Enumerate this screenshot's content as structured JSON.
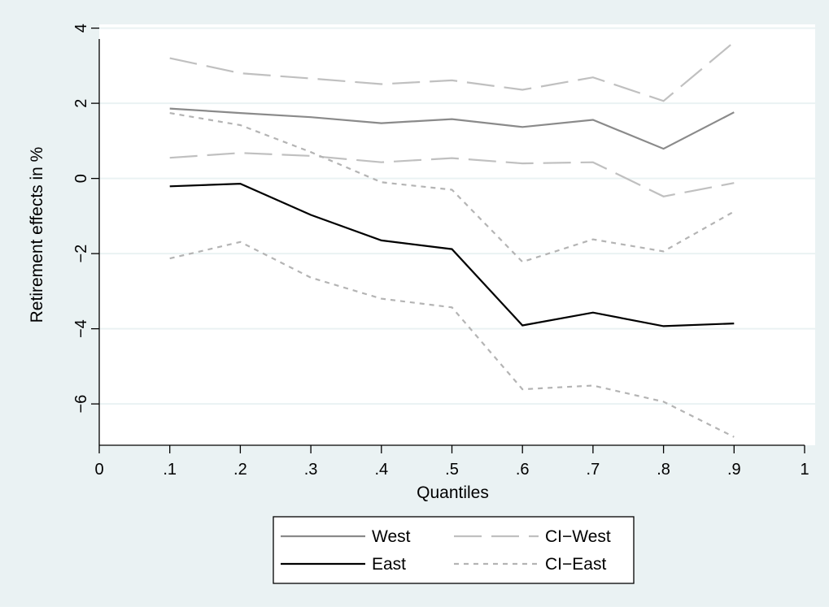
{
  "chart_data": {
    "type": "line",
    "xlabel": "Quantiles",
    "ylabel": "Retirement effects in %",
    "xlim": [
      0,
      1
    ],
    "ylim": [
      -7.1,
      4.1
    ],
    "x_ticks": [
      0,
      0.1,
      0.2,
      0.3,
      0.4,
      0.5,
      0.6,
      0.7,
      0.8,
      0.9,
      1
    ],
    "x_tick_labels": [
      "0",
      ".1",
      ".2",
      ".3",
      ".4",
      ".5",
      ".6",
      ".7",
      ".8",
      ".9",
      "1"
    ],
    "y_ticks": [
      4,
      2,
      0,
      -2,
      -4,
      -6
    ],
    "y_tick_labels": [
      "4",
      "2",
      "0",
      "−2",
      "−4",
      "−6"
    ],
    "grid": true,
    "legend_position": "bottom",
    "series": [
      {
        "name": "West",
        "style": "solid",
        "color": "#8a8a8a",
        "x": [
          0.1,
          0.2,
          0.3,
          0.4,
          0.5,
          0.6,
          0.7,
          0.8,
          0.9
        ],
        "values": [
          1.86,
          1.74,
          1.63,
          1.47,
          1.58,
          1.37,
          1.56,
          0.79,
          1.76
        ]
      },
      {
        "name": "CI−West",
        "style": "longdash",
        "color": "#c0c0c0",
        "x": [
          0.1,
          0.2,
          0.3,
          0.4,
          0.5,
          0.6,
          0.7,
          0.8,
          0.9
        ],
        "values": [
          3.2,
          2.8,
          2.66,
          2.51,
          2.61,
          2.36,
          2.69,
          2.06,
          3.63
        ]
      },
      {
        "name": "CI−West",
        "style": "longdash",
        "color": "#c0c0c0",
        "legend": false,
        "x": [
          0.1,
          0.2,
          0.3,
          0.4,
          0.5,
          0.6,
          0.7,
          0.8,
          0.9
        ],
        "values": [
          0.55,
          0.68,
          0.6,
          0.43,
          0.54,
          0.4,
          0.43,
          -0.48,
          -0.12
        ]
      },
      {
        "name": "East",
        "style": "solid",
        "color": "#000000",
        "x": [
          0.1,
          0.2,
          0.3,
          0.4,
          0.5,
          0.6,
          0.7,
          0.8,
          0.9
        ],
        "values": [
          -0.21,
          -0.14,
          -0.97,
          -1.65,
          -1.88,
          -3.91,
          -3.57,
          -3.93,
          -3.86
        ]
      },
      {
        "name": "CI−East",
        "style": "shortdash",
        "color": "#b4b4b4",
        "x": [
          0.1,
          0.2,
          0.3,
          0.4,
          0.5,
          0.6,
          0.7,
          0.8,
          0.9
        ],
        "values": [
          1.74,
          1.42,
          0.7,
          -0.1,
          -0.3,
          -2.22,
          -1.62,
          -1.94,
          -0.88
        ]
      },
      {
        "name": "CI−East",
        "style": "shortdash",
        "color": "#b4b4b4",
        "legend": false,
        "x": [
          0.1,
          0.2,
          0.3,
          0.4,
          0.5,
          0.6,
          0.7,
          0.8,
          0.9
        ],
        "values": [
          -2.13,
          -1.69,
          -2.64,
          -3.2,
          -3.43,
          -5.61,
          -5.51,
          -5.94,
          -6.88
        ]
      }
    ],
    "legend": [
      {
        "label": "West",
        "style": "solid",
        "color": "#8a8a8a"
      },
      {
        "label": "CI−West",
        "style": "longdash",
        "color": "#c0c0c0"
      },
      {
        "label": "East",
        "style": "solid",
        "color": "#000000"
      },
      {
        "label": "CI−East",
        "style": "shortdash",
        "color": "#b4b4b4"
      }
    ],
    "colors": {
      "outer_background": "#eaf2f3",
      "plot_background": "#ffffff",
      "grid": "#eaf2f3",
      "axis": "#000000"
    }
  }
}
